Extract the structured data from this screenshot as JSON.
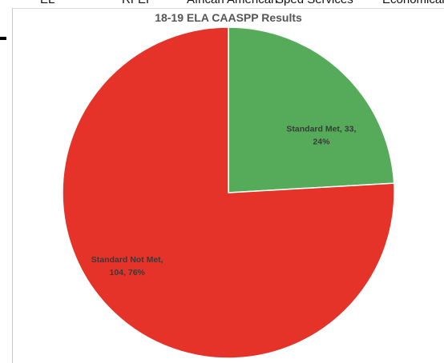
{
  "header_strip": {
    "items": [
      "EL",
      "RFEP",
      "African American",
      "Sped Services",
      "Economically"
    ]
  },
  "chart_data": {
    "type": "pie",
    "title": "18-19 ELA CAASPP Results",
    "slices": [
      {
        "label": "Standard Met",
        "value": 33,
        "percent": "24%",
        "label_lines": [
          "Standard Met, 33,",
          "24%"
        ],
        "color": "#56ab5a"
      },
      {
        "label": "Standard Not Met",
        "value": 104,
        "percent": "76%",
        "label_lines": [
          "Standard Not Met,",
          "104, 76%"
        ],
        "color": "#e5332a"
      }
    ]
  }
}
